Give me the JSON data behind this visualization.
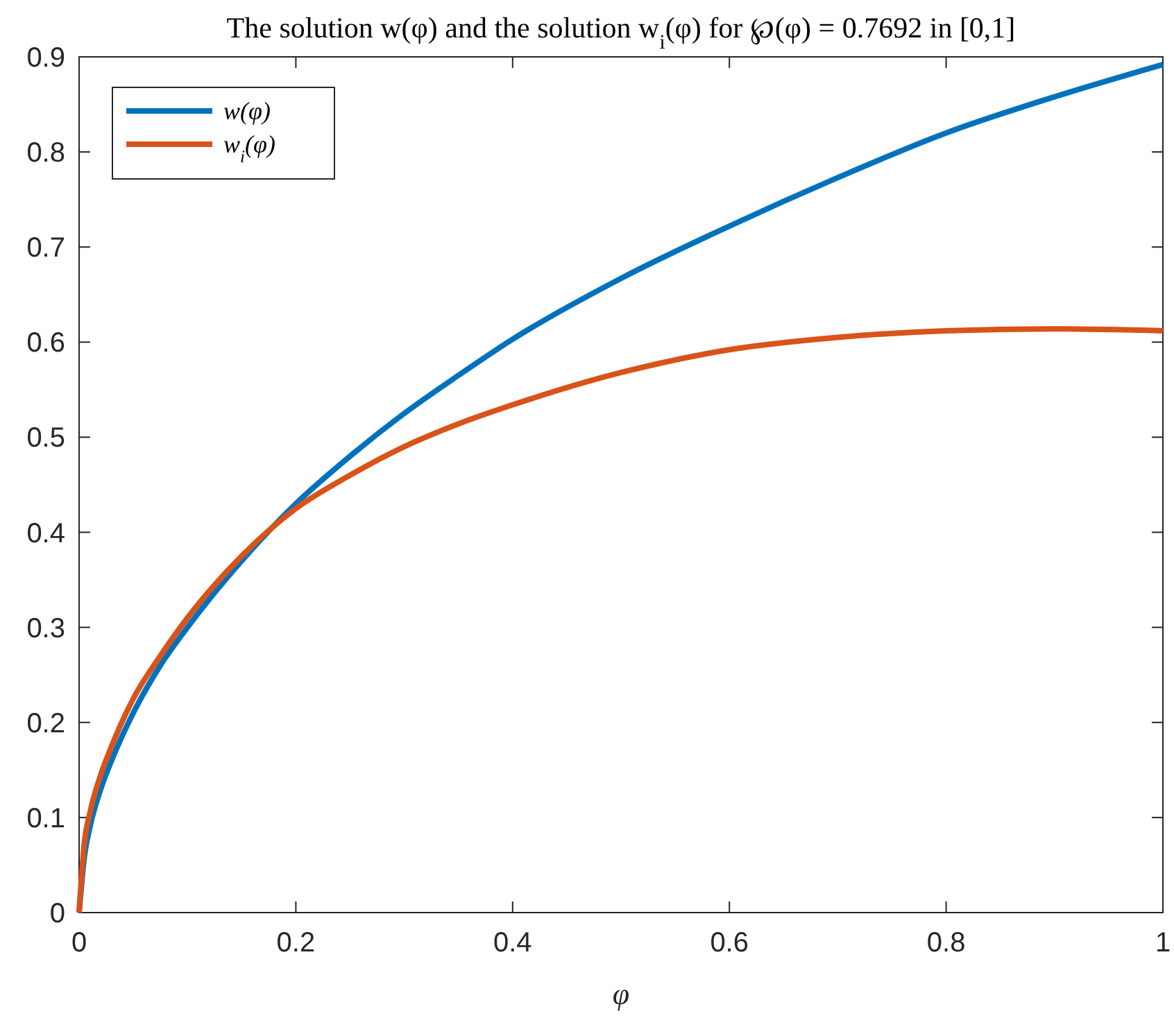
{
  "chart_data": {
    "type": "line",
    "title": "The solution w(φ) and the solution w$_{i}$(φ) for ℘(φ) = 0.7692 in [0,1]",
    "xlabel": "φ",
    "x": [
      0,
      0.005,
      0.01,
      0.02,
      0.03,
      0.05,
      0.075,
      0.1,
      0.15,
      0.2,
      0.25,
      0.3,
      0.35,
      0.4,
      0.5,
      0.6,
      0.7,
      0.8,
      0.9,
      1
    ],
    "series": [
      {
        "name": "w(φ)",
        "color": "#0072bd",
        "values": [
          0,
          0.06,
          0.09,
          0.13,
          0.16,
          0.21,
          0.26,
          0.3,
          0.37,
          0.43,
          0.48,
          0.525,
          0.565,
          0.603,
          0.667,
          0.722,
          0.773,
          0.82,
          0.858,
          0.892
        ]
      },
      {
        "name": "w$_{i}$(φ)",
        "color": "#d95319",
        "values": [
          0,
          0.075,
          0.105,
          0.145,
          0.175,
          0.225,
          0.27,
          0.31,
          0.375,
          0.425,
          0.46,
          0.49,
          0.514,
          0.534,
          0.568,
          0.592,
          0.605,
          0.612,
          0.614,
          0.612
        ]
      }
    ],
    "xlim": [
      0,
      1
    ],
    "xticks": [
      0,
      0.2,
      0.4,
      0.6,
      0.8,
      1
    ],
    "ylim": [
      0,
      0.9
    ],
    "yticks": [
      0,
      0.1,
      0.2,
      0.3,
      0.4,
      0.5,
      0.6,
      0.7,
      0.8,
      0.9
    ],
    "grid": false,
    "legend": "top left",
    "marker": "none",
    "line_style": "solid"
  }
}
